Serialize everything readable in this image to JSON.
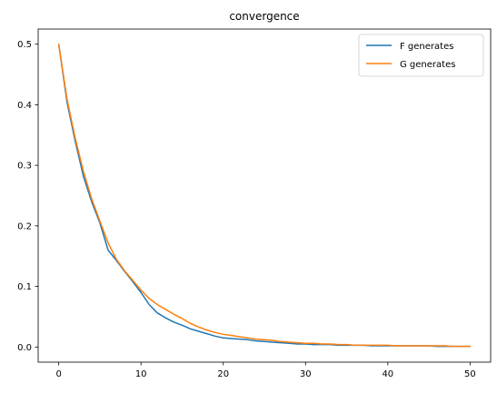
{
  "chart_data": {
    "type": "line",
    "title": "convergence",
    "xlabel": "",
    "ylabel": "",
    "xlim": [
      -2.5,
      52.5
    ],
    "ylim": [
      -0.025,
      0.525
    ],
    "xticks": [
      0,
      10,
      20,
      30,
      40,
      50
    ],
    "yticks": [
      0.0,
      0.1,
      0.2,
      0.3,
      0.4,
      0.5
    ],
    "xtick_labels": [
      "0",
      "10",
      "20",
      "30",
      "40",
      "50"
    ],
    "ytick_labels": [
      "0.0",
      "0.1",
      "0.2",
      "0.3",
      "0.4",
      "0.5"
    ],
    "grid": false,
    "legend_position": "top-right",
    "x": [
      0,
      1,
      2,
      3,
      4,
      5,
      6,
      7,
      8,
      9,
      10,
      11,
      12,
      13,
      14,
      15,
      16,
      17,
      18,
      19,
      20,
      21,
      22,
      23,
      24,
      25,
      26,
      27,
      28,
      29,
      30,
      31,
      32,
      33,
      34,
      35,
      36,
      37,
      38,
      39,
      40,
      41,
      42,
      43,
      44,
      45,
      46,
      47,
      48,
      49,
      50
    ],
    "series": [
      {
        "name": "F generates",
        "color": "#1f77b4",
        "values": [
          0.5,
          0.405,
          0.34,
          0.282,
          0.24,
          0.205,
          0.16,
          0.143,
          0.125,
          0.108,
          0.09,
          0.07,
          0.056,
          0.048,
          0.041,
          0.036,
          0.03,
          0.026,
          0.022,
          0.018,
          0.015,
          0.014,
          0.013,
          0.012,
          0.01,
          0.009,
          0.008,
          0.007,
          0.006,
          0.005,
          0.005,
          0.004,
          0.004,
          0.004,
          0.003,
          0.003,
          0.003,
          0.003,
          0.002,
          0.002,
          0.002,
          0.002,
          0.002,
          0.002,
          0.002,
          0.002,
          0.001,
          0.001,
          0.001,
          0.001,
          0.001
        ]
      },
      {
        "name": "G generates",
        "color": "#ff7f0e",
        "values": [
          0.5,
          0.41,
          0.345,
          0.29,
          0.245,
          0.208,
          0.172,
          0.145,
          0.126,
          0.11,
          0.094,
          0.08,
          0.07,
          0.062,
          0.054,
          0.047,
          0.039,
          0.033,
          0.028,
          0.024,
          0.021,
          0.019,
          0.017,
          0.015,
          0.013,
          0.012,
          0.011,
          0.009,
          0.008,
          0.007,
          0.006,
          0.006,
          0.005,
          0.005,
          0.004,
          0.004,
          0.003,
          0.003,
          0.003,
          0.003,
          0.003,
          0.002,
          0.002,
          0.002,
          0.002,
          0.002,
          0.002,
          0.002,
          0.001,
          0.001,
          0.001
        ]
      }
    ]
  }
}
